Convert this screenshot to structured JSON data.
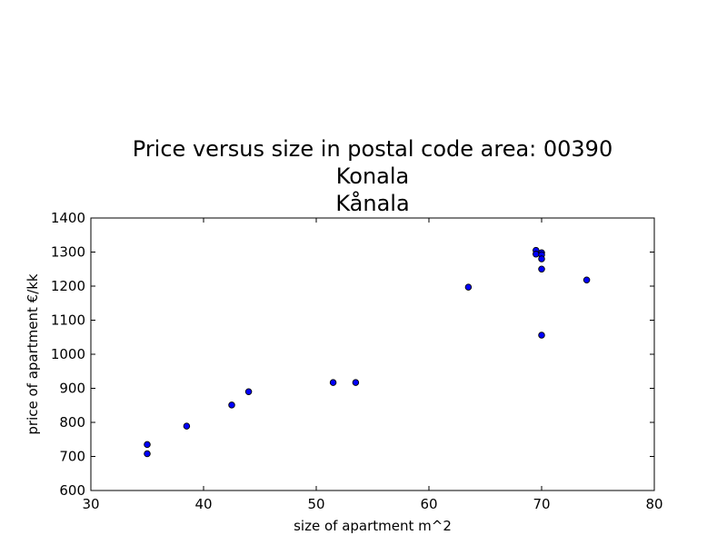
{
  "chart_data": {
    "type": "scatter",
    "title_lines": [
      "Price versus size in postal code area: 00390",
      "Konala",
      "Kånala"
    ],
    "xlabel": "size of apartment m^2",
    "ylabel": "price of apartment €/kk",
    "xlim": [
      30,
      80
    ],
    "ylim": [
      600,
      1400
    ],
    "x_ticks": [
      30,
      40,
      50,
      60,
      70,
      80
    ],
    "y_ticks": [
      600,
      700,
      800,
      900,
      1000,
      1100,
      1200,
      1300,
      1400
    ],
    "grid": false,
    "marker_color": "#0000ff",
    "points": [
      {
        "x": 35.0,
        "y": 735
      },
      {
        "x": 35.0,
        "y": 708
      },
      {
        "x": 38.5,
        "y": 789
      },
      {
        "x": 42.5,
        "y": 851
      },
      {
        "x": 44.0,
        "y": 890
      },
      {
        "x": 51.5,
        "y": 917
      },
      {
        "x": 53.5,
        "y": 917
      },
      {
        "x": 63.5,
        "y": 1197
      },
      {
        "x": 69.5,
        "y": 1305
      },
      {
        "x": 69.5,
        "y": 1294
      },
      {
        "x": 70.0,
        "y": 1298
      },
      {
        "x": 70.0,
        "y": 1292
      },
      {
        "x": 70.0,
        "y": 1280
      },
      {
        "x": 70.0,
        "y": 1250
      },
      {
        "x": 70.0,
        "y": 1056
      },
      {
        "x": 74.0,
        "y": 1218
      }
    ]
  }
}
